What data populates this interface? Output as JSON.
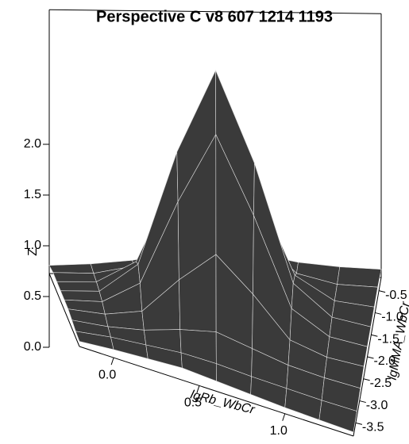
{
  "chart_data": {
    "type": "surface",
    "title": "Perspective C v8 607 1214 1193",
    "xlabel": "lgRb_WbCr",
    "ylabel": "lgMMA_WbCr",
    "zlabel": "Z",
    "x": [
      -0.2,
      0,
      0.2,
      0.4,
      0.6,
      0.8,
      1.0,
      1.2,
      1.4
    ],
    "y": [
      -3.8,
      -3.35,
      -2.9,
      -2.45,
      -2.0,
      -1.55,
      -1.1,
      -0.65,
      -0.2
    ],
    "z": [
      [
        0.05,
        0.08,
        0.1,
        0.12,
        0.1,
        0.08,
        0.06,
        0.05,
        0.04
      ],
      [
        0.06,
        0.1,
        0.12,
        0.14,
        0.13,
        0.1,
        0.08,
        0.06,
        0.05
      ],
      [
        0.08,
        0.1,
        0.15,
        0.24,
        0.3,
        0.22,
        0.14,
        0.1,
        0.08
      ],
      [
        0.1,
        0.12,
        0.22,
        0.6,
        0.92,
        0.6,
        0.22,
        0.12,
        0.1
      ],
      [
        0.1,
        0.14,
        0.38,
        1.24,
        1.96,
        1.22,
        0.36,
        0.14,
        0.1
      ],
      [
        0.1,
        0.14,
        0.45,
        1.6,
        2.45,
        1.58,
        0.44,
        0.15,
        0.1
      ],
      [
        0.1,
        0.13,
        0.36,
        1.22,
        1.92,
        1.2,
        0.35,
        0.13,
        0.1
      ],
      [
        0.1,
        0.11,
        0.2,
        0.58,
        0.9,
        0.58,
        0.2,
        0.11,
        0.1
      ],
      [
        0.08,
        0.1,
        0.14,
        0.22,
        0.3,
        0.22,
        0.14,
        0.1,
        0.08
      ]
    ],
    "xlim": [
      -0.2,
      1.4
    ],
    "ylim": [
      -3.8,
      -0.2
    ],
    "zlim": [
      0,
      2.6
    ],
    "xticks": [
      {
        "value": 0,
        "label": "0.0"
      },
      0.5,
      {
        "value": 1,
        "label": "1.0"
      }
    ],
    "yticks": [
      -0.5,
      {
        "value": -1,
        "label": "-1.0"
      },
      -1.5,
      {
        "value": -2,
        "label": "-2.0"
      },
      -2.5,
      {
        "value": -3,
        "label": "-3.0"
      },
      -3.5
    ],
    "zticks": [
      {
        "value": 0,
        "label": "0.0"
      },
      0.5,
      {
        "value": 1,
        "label": "1.0"
      },
      1.5,
      {
        "value": 2,
        "label": "2.0"
      }
    ],
    "surface_color": "#3a3a3a",
    "mesh_color": "#e0e0e0"
  }
}
